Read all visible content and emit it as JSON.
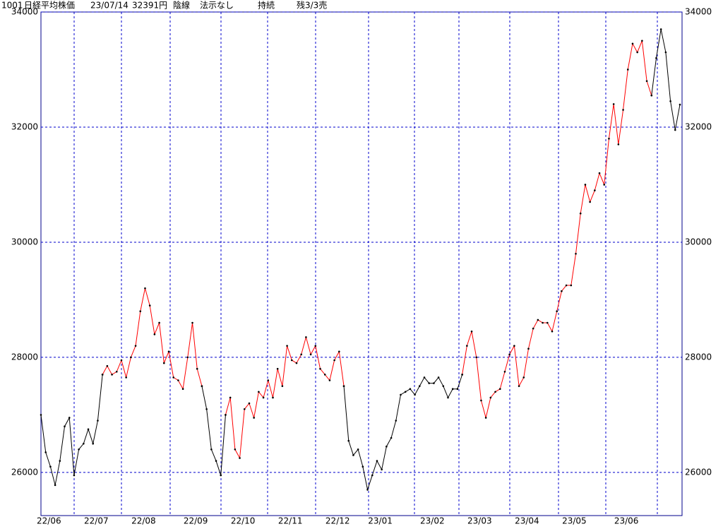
{
  "header": {
    "code": "1001",
    "name": "日経平均株価",
    "date": "23/07/14",
    "price": "32391円",
    "candle": "陰線",
    "signal": "法示なし",
    "status": "持続",
    "position": "残3/3売"
  },
  "chart_data": {
    "type": "line",
    "categories": [
      "22/06",
      null,
      null,
      null,
      null,
      null,
      null,
      null,
      null,
      null,
      "22/07",
      null,
      null,
      null,
      null,
      null,
      null,
      null,
      null,
      null,
      "22/08",
      null,
      null,
      null,
      null,
      null,
      null,
      null,
      null,
      null,
      null,
      "22/09",
      null,
      null,
      null,
      null,
      null,
      null,
      null,
      null,
      null,
      "22/10",
      null,
      null,
      null,
      null,
      null,
      null,
      null,
      null,
      null,
      "22/11",
      null,
      null,
      null,
      null,
      null,
      null,
      null,
      null,
      null,
      "22/12",
      null,
      null,
      null,
      null,
      null,
      null,
      null,
      null,
      "23/01",
      null,
      null,
      null,
      null,
      null,
      null,
      null,
      null,
      null,
      null,
      "23/02",
      null,
      null,
      null,
      null,
      null,
      null,
      null,
      null,
      null,
      "23/03",
      null,
      null,
      null,
      null,
      null,
      null,
      null,
      null,
      null,
      "23/04",
      null,
      null,
      null,
      null,
      null,
      null,
      null,
      null,
      null,
      "23/05",
      null,
      null,
      null,
      null,
      null,
      null,
      null,
      null,
      null,
      null,
      "23/06",
      null,
      null,
      null,
      null,
      null,
      null,
      null,
      null,
      null,
      null,
      null,
      null,
      null
    ],
    "series": [
      {
        "color": "#000000",
        "values": [
          27000,
          26350,
          26100,
          25780,
          26200,
          26800,
          26950,
          25950,
          26400,
          26500,
          26750,
          26500,
          26900,
          27700,
          null,
          null,
          null,
          null,
          null,
          null,
          null,
          null,
          null,
          null,
          null,
          null,
          null,
          null,
          null,
          null,
          null,
          null,
          null,
          null,
          27500,
          27100,
          26400,
          26200,
          25950,
          27000,
          null,
          null,
          null,
          null,
          null,
          null,
          null,
          null,
          null,
          null,
          null,
          null,
          null,
          null,
          null,
          null,
          null,
          null,
          null,
          null,
          null,
          null,
          null,
          null,
          27500,
          26550,
          26300,
          26400,
          26100,
          25700,
          25950,
          26200,
          26050,
          26450,
          26600,
          26900,
          27350,
          27400,
          27450,
          27350,
          27500,
          27650,
          27550,
          27550,
          27650,
          27500,
          27300,
          27450,
          27450,
          27700,
          null,
          null,
          null,
          null,
          null,
          null,
          null,
          null,
          null,
          null,
          null,
          null,
          null,
          null,
          null,
          null,
          null,
          null,
          null,
          null,
          null,
          null,
          null,
          null,
          null,
          null,
          null,
          null,
          null,
          null,
          null,
          null,
          null,
          null,
          null,
          null,
          null,
          null,
          null,
          32550,
          33200,
          33700,
          33300,
          32450,
          31950,
          32391
        ]
      },
      {
        "color": "#ff0000",
        "values": [
          null,
          null,
          null,
          null,
          null,
          null,
          null,
          null,
          null,
          null,
          null,
          null,
          null,
          27700,
          27850,
          27700,
          27750,
          27950,
          27650,
          28000,
          28200,
          28800,
          29200,
          28900,
          28400,
          28600,
          27900,
          28100,
          27650,
          27600,
          27450,
          28000,
          28600,
          27800,
          27500,
          null,
          null,
          null,
          null,
          27000,
          27300,
          26400,
          26250,
          27100,
          27200,
          26950,
          27400,
          27300,
          27600,
          27300,
          27800,
          27500,
          28200,
          27950,
          27900,
          28050,
          28350,
          28050,
          28200,
          27800,
          27700,
          27600,
          27950,
          28100,
          27500,
          null,
          null,
          null,
          null,
          null,
          null,
          null,
          null,
          null,
          null,
          null,
          null,
          null,
          null,
          null,
          null,
          null,
          null,
          null,
          null,
          null,
          null,
          null,
          null,
          27700,
          28200,
          28450,
          28000,
          27250,
          26950,
          27300,
          27400,
          27450,
          27750,
          28050,
          28200,
          27500,
          27650,
          28150,
          28500,
          28650,
          28600,
          28600,
          28450,
          28800,
          29150,
          29250,
          29250,
          29800,
          30500,
          31000,
          30700,
          30900,
          31200,
          31000,
          31800,
          32400,
          31700,
          32300,
          33000,
          33450,
          33300,
          33500,
          32800,
          32550,
          null,
          null,
          null,
          null,
          null,
          null
        ]
      }
    ],
    "ylim": [
      25250,
      34000
    ],
    "yticks": [
      26000,
      28000,
      30000,
      32000,
      34000
    ],
    "grid": true
  }
}
